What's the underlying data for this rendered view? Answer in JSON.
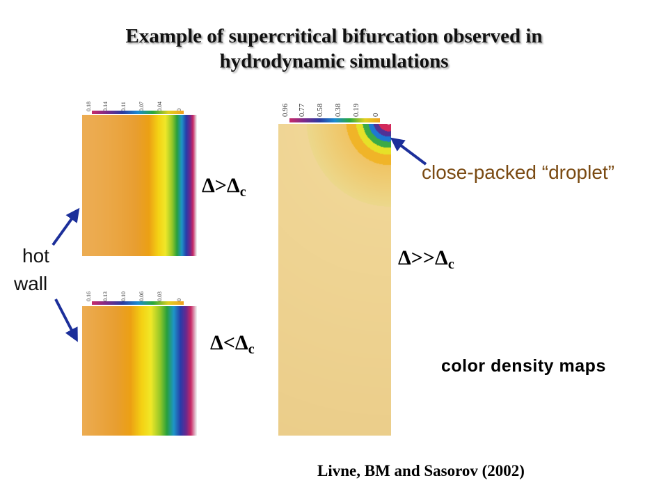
{
  "title": {
    "line1": "Example of supercritical bifurcation observed in",
    "line2": "hydrodynamic simulations"
  },
  "maps": {
    "top_left": {
      "ticks": [
        "0.18",
        "0.14",
        "0.11",
        "0.07",
        "0.04",
        "0"
      ],
      "label_main": "Δ>Δ",
      "label_sub": "c"
    },
    "bottom_left": {
      "ticks": [
        "0.16",
        "0.13",
        "0.10",
        "0.06",
        "0.03",
        "0"
      ],
      "label_main": "Δ<Δ",
      "label_sub": "c"
    },
    "right": {
      "ticks": [
        "0.96",
        "0.77",
        "0.58",
        "0.38",
        "0.19",
        "0"
      ],
      "label_main": "Δ>>Δ",
      "label_sub": "c"
    }
  },
  "hot_wall": {
    "line1": "hot",
    "line2": "wall"
  },
  "droplet_label": "close-packed “droplet”",
  "maps_caption": "color density maps",
  "citation": "Livne, BM and Sasorov (2002)",
  "colors": {
    "droplet_text": "#7a4a12",
    "arrow": "#1c2f9a"
  }
}
